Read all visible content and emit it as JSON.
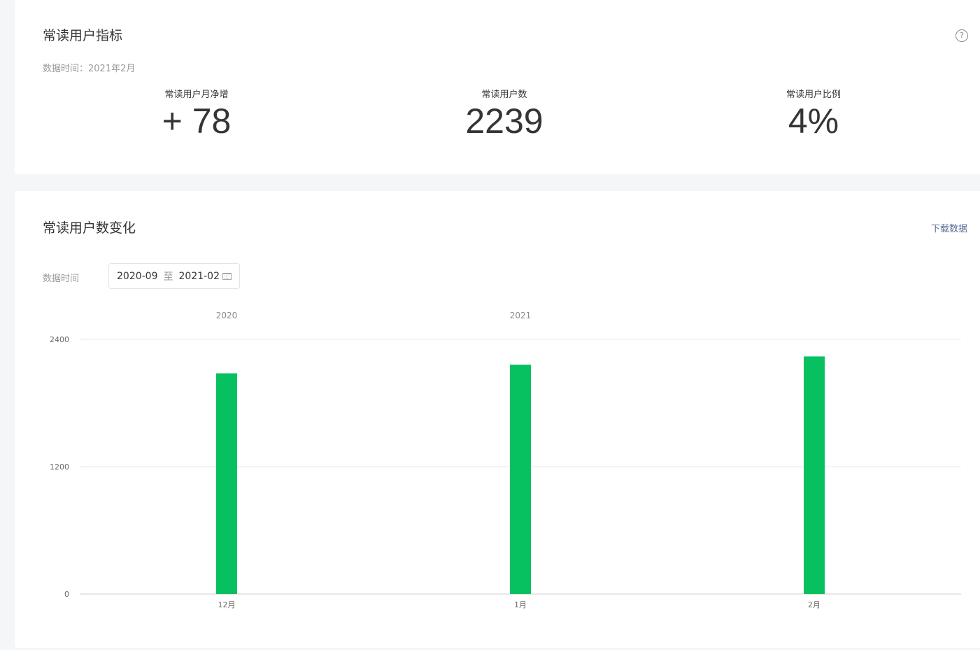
{
  "metrics_card": {
    "title": "常读用户指标",
    "help_icon": "?",
    "data_time": "数据时间：2021年2月",
    "metrics": [
      {
        "label": "常读用户月净增",
        "value": "+ 78"
      },
      {
        "label": "常读用户数",
        "value": "2239"
      },
      {
        "label": "常读用户比例",
        "value": "4%"
      }
    ]
  },
  "trend_card": {
    "title": "常读用户数变化",
    "download_label": "下载数据",
    "range_label": "数据时间",
    "range_start": "2020-09",
    "range_sep": "至",
    "range_end": "2021-02"
  },
  "colors": {
    "bar": "#07c160",
    "link": "#576b95"
  },
  "chart_data": {
    "type": "bar",
    "categories": [
      "12月",
      "1月",
      "2月"
    ],
    "values": [
      2080,
      2161,
      2239
    ],
    "year_labels": [
      {
        "label": "2020",
        "category": "12月"
      },
      {
        "label": "2021",
        "category": "1月"
      }
    ],
    "yticks": [
      0,
      1200,
      2400
    ],
    "ylim": [
      0,
      2400
    ],
    "grid": true
  }
}
